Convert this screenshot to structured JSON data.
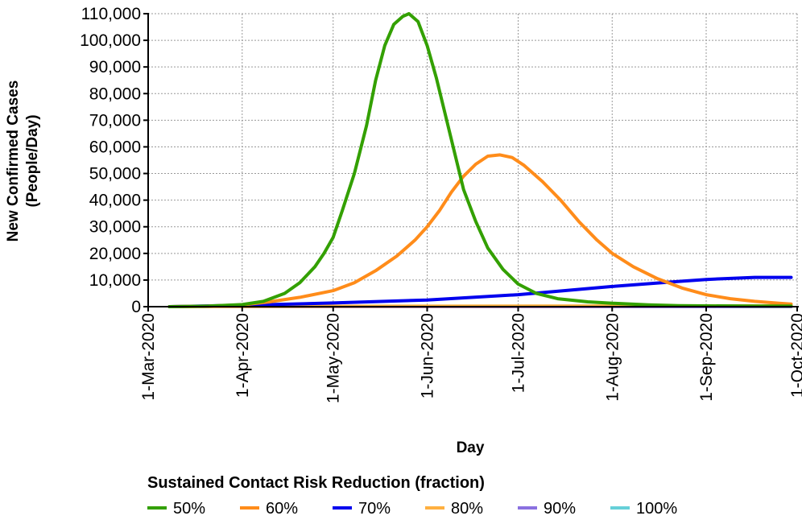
{
  "chart_data": {
    "type": "line",
    "title": "",
    "xlabel": "Day",
    "ylabel_line1": "New Confirmed Cases",
    "ylabel_line2": "(People/Day)",
    "x_unit": "days since 1-Mar-2020",
    "xlim": [
      0,
      214
    ],
    "ylim": [
      0,
      110000
    ],
    "grid": true,
    "x_ticks": [
      {
        "day": 0,
        "label": "1-Mar-2020"
      },
      {
        "day": 31,
        "label": "1-Apr-2020"
      },
      {
        "day": 61,
        "label": "1-May-2020"
      },
      {
        "day": 92,
        "label": "1-Jun-2020"
      },
      {
        "day": 122,
        "label": "1-Jul-2020"
      },
      {
        "day": 153,
        "label": "1-Aug-2020"
      },
      {
        "day": 184,
        "label": "1-Sep-2020"
      },
      {
        "day": 214,
        "label": "1-Oct-2020"
      }
    ],
    "y_ticks": [
      {
        "value": 0,
        "label": "0"
      },
      {
        "value": 10000,
        "label": "10,000"
      },
      {
        "value": 20000,
        "label": "20,000"
      },
      {
        "value": 30000,
        "label": "30,000"
      },
      {
        "value": 40000,
        "label": "40,000"
      },
      {
        "value": 50000,
        "label": "50,000"
      },
      {
        "value": 60000,
        "label": "60,000"
      },
      {
        "value": 70000,
        "label": "70,000"
      },
      {
        "value": 80000,
        "label": "80,000"
      },
      {
        "value": 90000,
        "label": "90,000"
      },
      {
        "value": 100000,
        "label": "100,000"
      },
      {
        "value": 110000,
        "label": "110,000"
      }
    ],
    "legend_title": "Sustained Contact Risk Reduction (fraction)",
    "legend_position": "bottom",
    "series": [
      {
        "name": "50%",
        "color": "#33a000",
        "x": [
          7,
          20,
          31,
          38,
          45,
          50,
          55,
          58,
          61,
          64,
          68,
          72,
          75,
          78,
          81,
          84,
          86,
          89,
          92,
          95,
          98,
          101,
          104,
          108,
          112,
          117,
          122,
          128,
          135,
          145,
          153,
          165,
          175,
          184,
          200,
          212
        ],
        "y": [
          0,
          200,
          800,
          2000,
          5000,
          9000,
          15000,
          20000,
          26000,
          36000,
          50000,
          68000,
          85000,
          98000,
          106000,
          109000,
          110000,
          107000,
          98000,
          86000,
          72000,
          58000,
          44000,
          32000,
          22000,
          14000,
          8500,
          5000,
          3000,
          1800,
          1300,
          700,
          400,
          300,
          200,
          200
        ]
      },
      {
        "name": "60%",
        "color": "#ff8c1a",
        "x": [
          7,
          20,
          31,
          40,
          50,
          61,
          68,
          75,
          82,
          88,
          92,
          96,
          100,
          104,
          108,
          112,
          116,
          120,
          124,
          130,
          136,
          142,
          148,
          153,
          160,
          168,
          176,
          184,
          192,
          200,
          208,
          212
        ],
        "y": [
          0,
          200,
          700,
          1800,
          3500,
          6000,
          9000,
          13500,
          19000,
          25000,
          30000,
          36000,
          43000,
          49000,
          53500,
          56500,
          57000,
          56000,
          53000,
          47000,
          40000,
          32000,
          25000,
          20000,
          15000,
          10500,
          7000,
          4500,
          3000,
          2000,
          1300,
          1000
        ]
      },
      {
        "name": "70%",
        "color": "#0000ee",
        "x": [
          7,
          31,
          61,
          92,
          122,
          153,
          175,
          184,
          200,
          212
        ],
        "y": [
          0,
          500,
          1400,
          2500,
          4500,
          7600,
          9500,
          10200,
          11000,
          11000
        ]
      },
      {
        "name": "80%",
        "color": "#ffb040",
        "x": [
          7,
          61,
          122,
          184,
          212
        ],
        "y": [
          0,
          150,
          250,
          300,
          300
        ]
      },
      {
        "name": "90%",
        "color": "#8a70e0",
        "x": [
          7,
          212
        ],
        "y": [
          0,
          0
        ]
      },
      {
        "name": "100%",
        "color": "#66d0d8",
        "x": [
          7,
          212
        ],
        "y": [
          0,
          0
        ]
      }
    ]
  }
}
